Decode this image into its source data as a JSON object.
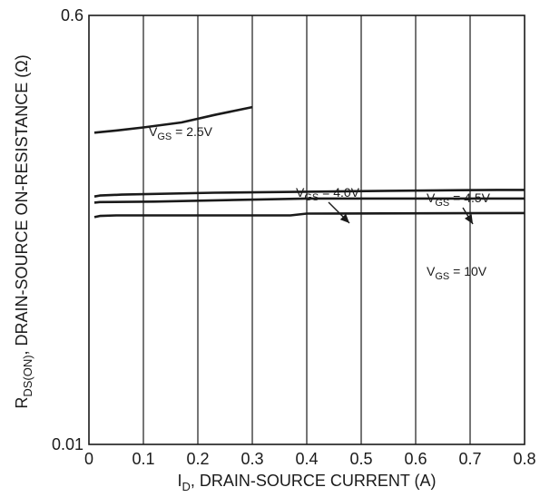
{
  "chart_data": {
    "type": "line",
    "title": "",
    "xlabel": "I_D, DRAIN-SOURCE CURRENT (A)",
    "xlabel_parts": {
      "main": "I",
      "sub": "D",
      "rest": ", DRAIN-SOURCE CURRENT (A)"
    },
    "ylabel": "R_DS(ON), DRAIN-SOURCE ON-RESISTANCE (Ω)",
    "ylabel_parts": {
      "main": "R",
      "sub": "DS(ON)",
      "rest": ", DRAIN-SOURCE ON-RESISTANCE (Ω)"
    },
    "xlim": [
      0,
      0.8
    ],
    "ylim": [
      0.01,
      0.6
    ],
    "yscale": "log",
    "grid": "vertical lines only",
    "x_ticks": [
      {
        "value": 0,
        "label": "0"
      },
      {
        "value": 0.1,
        "label": "0.1"
      },
      {
        "value": 0.2,
        "label": "0.2"
      },
      {
        "value": 0.3,
        "label": "0.3"
      },
      {
        "value": 0.4,
        "label": "0.4"
      },
      {
        "value": 0.5,
        "label": "0.5"
      },
      {
        "value": 0.6,
        "label": "0.6"
      },
      {
        "value": 0.7,
        "label": "0.7"
      },
      {
        "value": 0.8,
        "label": "0.8"
      }
    ],
    "y_ticks": [
      {
        "value": 0.6,
        "label": "0.6"
      },
      {
        "value": 0.01,
        "label": "0.01"
      }
    ],
    "series": [
      {
        "name": "VGS = 2.5V",
        "label": {
          "v": "V",
          "sub": "GS",
          "rest": " = 2.5V"
        },
        "x": [
          0.01,
          0.02,
          0.05,
          0.1,
          0.17,
          0.23,
          0.3
        ],
        "y": [
          0.196,
          0.197,
          0.2,
          0.206,
          0.216,
          0.232,
          0.25
        ]
      },
      {
        "name": "VGS = 4.5V",
        "label": {
          "v": "V",
          "sub": "GS",
          "rest": " = 4.5V"
        },
        "x": [
          0.01,
          0.02,
          0.06,
          0.23,
          0.55,
          0.75,
          0.8
        ],
        "y": [
          0.1065,
          0.1075,
          0.1085,
          0.1105,
          0.1125,
          0.1135,
          0.1135
        ]
      },
      {
        "name": "VGS = 4.0V",
        "label": {
          "v": "V",
          "sub": "GS",
          "rest": " = 4.0V"
        },
        "x": [
          0.01,
          0.02,
          0.12,
          0.4,
          0.8
        ],
        "y": [
          0.1005,
          0.101,
          0.1015,
          0.1045,
          0.1045
        ]
      },
      {
        "name": "VGS = 10V",
        "label": {
          "v": "V",
          "sub": "GS",
          "rest": " = 10V"
        },
        "x": [
          0.01,
          0.02,
          0.05,
          0.37,
          0.4,
          0.8
        ],
        "y": [
          0.0875,
          0.0885,
          0.089,
          0.089,
          0.0905,
          0.091
        ]
      }
    ]
  }
}
